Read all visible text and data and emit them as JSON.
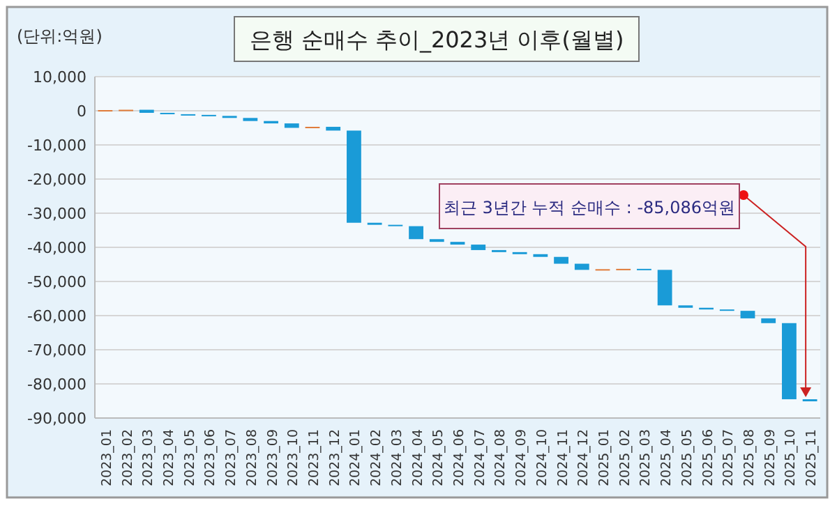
{
  "chart_data": {
    "type": "bar",
    "title": "은행 순매수 추이_2023년 이후(월별)",
    "ylabel": "(단위:억원)",
    "categories": [
      "2023_01",
      "2023_02",
      "2023_03",
      "2023_04",
      "2023_05",
      "2023_06",
      "2023_07",
      "2023_08",
      "2023_09",
      "2023_10",
      "2023_11",
      "2023_12",
      "2024_01",
      "2024_02",
      "2024_03",
      "2024_04",
      "2024_05",
      "2024_06",
      "2024_07",
      "2024_08",
      "2024_09",
      "2024_10",
      "2024_11",
      "2024_12",
      "2025_01",
      "2025_02",
      "2025_03",
      "2025_04",
      "2025_05",
      "2025_06",
      "2025_07",
      "2025_08",
      "2025_09",
      "2025_10",
      "2025_11"
    ],
    "values": [
      200,
      100,
      -900,
      -400,
      -200,
      -300,
      -600,
      -900,
      -700,
      -1300,
      300,
      -1100,
      -27000,
      -600,
      -400,
      -3800,
      -800,
      -800,
      -1600,
      -600,
      -600,
      -800,
      -2000,
      -1800,
      200,
      100,
      -300,
      -10400,
      -700,
      -500,
      -400,
      -2200,
      -1400,
      -22300,
      -600
    ],
    "base": [
      0,
      200,
      300,
      -600,
      -1000,
      -1200,
      -1500,
      -2100,
      -3000,
      -3700,
      -5000,
      -4700,
      -5800,
      -32800,
      -33400,
      -33800,
      -37600,
      -38400,
      -39200,
      -40800,
      -41400,
      -42000,
      -42800,
      -44800,
      -46600,
      -46400,
      -46300,
      -46600,
      -57000,
      -57700,
      -58200,
      -58600,
      -60800,
      -62200,
      -84500
    ],
    "colors": [
      "#e07b39",
      "#e07b39",
      "#1a9bd7",
      "#1a9bd7",
      "#1a9bd7",
      "#1a9bd7",
      "#1a9bd7",
      "#1a9bd7",
      "#1a9bd7",
      "#1a9bd7",
      "#e07b39",
      "#1a9bd7",
      "#1a9bd7",
      "#1a9bd7",
      "#1a9bd7",
      "#1a9bd7",
      "#1a9bd7",
      "#1a9bd7",
      "#1a9bd7",
      "#1a9bd7",
      "#1a9bd7",
      "#1a9bd7",
      "#1a9bd7",
      "#1a9bd7",
      "#e07b39",
      "#e07b39",
      "#1a9bd7",
      "#1a9bd7",
      "#1a9bd7",
      "#1a9bd7",
      "#1a9bd7",
      "#1a9bd7",
      "#1a9bd7",
      "#1a9bd7",
      "#1a9bd7"
    ],
    "ylim": [
      -90000,
      10000
    ],
    "yticks": [
      {
        "value": 10000,
        "label": "10,000"
      },
      {
        "value": 0,
        "label": "0"
      },
      {
        "value": -10000,
        "label": "-10,000"
      },
      {
        "value": -20000,
        "label": "-20,000"
      },
      {
        "value": -30000,
        "label": "-30,000"
      },
      {
        "value": -40000,
        "label": "-40,000"
      },
      {
        "value": -50000,
        "label": "-50,000"
      },
      {
        "value": -60000,
        "label": "-60,000"
      },
      {
        "value": -70000,
        "label": "-70,000"
      },
      {
        "value": -80000,
        "label": "-80,000"
      },
      {
        "value": -90000,
        "label": "-90,000"
      }
    ],
    "grid": "y",
    "annotations": [
      {
        "text": "최근 3년간 누적 순매수 : -85,086억원",
        "x": "2025_11",
        "y": -85100
      }
    ]
  }
}
